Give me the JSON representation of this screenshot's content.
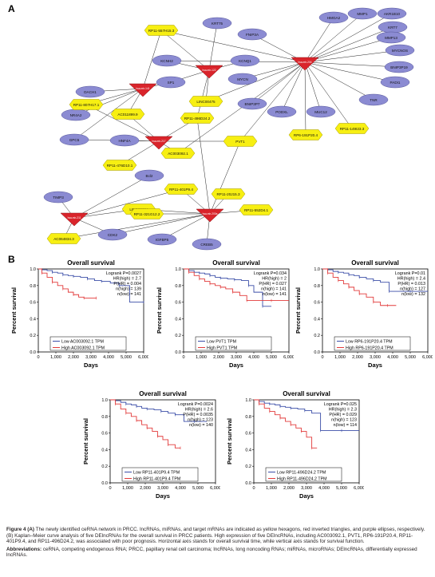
{
  "panel_a_label": "A",
  "panel_b_label": "B",
  "network": {
    "hexagons": [
      "RP11-557H15.3",
      "LINC00475",
      "RP11-807H17.1",
      "AC011899.9",
      "RP11-496D24.2",
      "PVT1",
      "AC003092.1",
      "RP11-476D10.1",
      "RP11-401P9.4",
      "LINC00284",
      "RP11-20J15.3",
      "RP11-552D4.1",
      "RP11-321G12.2",
      "AC064834.3",
      "RP6-191P20.4",
      "RP11-149I23.3"
    ],
    "mirnas": [
      "hsa-mir-204",
      "hsa-mir-122",
      "hsa-mir-141",
      "hsa-mir-217",
      "hsa-mir-211",
      "hsa-mir-200a"
    ],
    "ellipses": [
      "KRT75",
      "FNIP3A",
      "KCNH2",
      "KCNQ1",
      "SP1",
      "MYCN",
      "HMGA2",
      "MMP1",
      "AKR1B10",
      "KRT7",
      "MMP13",
      "MYCNOS",
      "BNIP3P19",
      "PADI1",
      "TNR",
      "MUC12",
      "PODXL",
      "BNIP3P7",
      "DACH1",
      "NR4A2",
      "GPC5",
      "HNF4A",
      "Bcl2",
      "TIMP3",
      "CDK2",
      "IGFBP5",
      "CREB5"
    ]
  },
  "chart_data": [
    {
      "type": "line",
      "title": "Overall survival",
      "xlabel": "Days",
      "ylabel": "Percent survival",
      "xlim": [
        0,
        6000
      ],
      "ylim": [
        0,
        1.0
      ],
      "xticks": [
        "0",
        "1,000",
        "2,000",
        "3,000",
        "4,000",
        "5,000",
        "6,000"
      ],
      "yticks": [
        "0.0",
        "0.2",
        "0.4",
        "0.6",
        "0.8",
        "1.0"
      ],
      "stats": [
        "Logrank P=0.0027",
        "HR(high) = 2.7",
        "P(HR) = 0.004",
        "n(high) = 139",
        "n(low) = 141"
      ],
      "series": [
        {
          "name": "Low AC003092.1 TPM",
          "color": "#3b4ea8",
          "x": [
            0,
            200,
            500,
            800,
            1100,
            1400,
            1700,
            2000,
            2400,
            2800,
            3200,
            3600,
            4100,
            4600,
            5200,
            6000
          ],
          "y": [
            1.0,
            0.99,
            0.98,
            0.96,
            0.95,
            0.93,
            0.92,
            0.91,
            0.9,
            0.88,
            0.86,
            0.85,
            0.83,
            0.8,
            0.6,
            0.6
          ]
        },
        {
          "name": "High AC003092.1 TPM",
          "color": "#e23a3a",
          "x": [
            0,
            200,
            500,
            800,
            1100,
            1400,
            1700,
            2000,
            2300,
            2600,
            3000,
            3300
          ],
          "y": [
            1.0,
            0.95,
            0.9,
            0.84,
            0.8,
            0.76,
            0.72,
            0.69,
            0.66,
            0.65,
            0.65,
            0.65
          ]
        }
      ]
    },
    {
      "type": "line",
      "title": "Overall survival",
      "xlabel": "Days",
      "ylabel": "Percent survival",
      "xlim": [
        0,
        6000
      ],
      "ylim": [
        0,
        1.0
      ],
      "xticks": [
        "0",
        "1,000",
        "2,000",
        "3,000",
        "4,000",
        "5,000",
        "6,000"
      ],
      "yticks": [
        "0.0",
        "0.2",
        "0.4",
        "0.6",
        "0.8",
        "1.0"
      ],
      "stats": [
        "Logrank P=0.034",
        "HR(high) = 2",
        "P(HR) = 0.027",
        "n(high) = 141",
        "n(low) = 141"
      ],
      "series": [
        {
          "name": "Low PVT1 TPM",
          "color": "#3b4ea8",
          "x": [
            0,
            300,
            600,
            900,
            1200,
            1500,
            1800,
            2100,
            2500,
            2900,
            3300,
            3700,
            4000,
            4500,
            5000
          ],
          "y": [
            1.0,
            0.98,
            0.96,
            0.95,
            0.94,
            0.92,
            0.9,
            0.89,
            0.88,
            0.87,
            0.86,
            0.8,
            0.72,
            0.55,
            0.55
          ]
        },
        {
          "name": "High PVT1 TPM",
          "color": "#e23a3a",
          "x": [
            0,
            300,
            600,
            900,
            1200,
            1500,
            1800,
            2100,
            2400,
            2800,
            3200,
            3600,
            4200,
            5000,
            6000
          ],
          "y": [
            1.0,
            0.96,
            0.92,
            0.88,
            0.85,
            0.82,
            0.8,
            0.78,
            0.76,
            0.72,
            0.68,
            0.62,
            0.62,
            0.62,
            0.62
          ]
        }
      ]
    },
    {
      "type": "line",
      "title": "Overall survival",
      "xlabel": "Days",
      "ylabel": "Percent survival",
      "xlim": [
        0,
        6000
      ],
      "ylim": [
        0,
        1.0
      ],
      "xticks": [
        "0",
        "1,000",
        "2,000",
        "3,000",
        "4,000",
        "5,000",
        "6,000"
      ],
      "yticks": [
        "0.0",
        "0.2",
        "0.4",
        "0.6",
        "0.8",
        "1.0"
      ],
      "stats": [
        "Logrank P=0.01",
        "HR(high) = 2.4",
        "P(HR) = 0.013",
        "n(high) = 127",
        "n(low) = 132"
      ],
      "series": [
        {
          "name": "Low RP6-191P20.4 TPM",
          "color": "#3b4ea8",
          "x": [
            0,
            300,
            600,
            900,
            1200,
            1500,
            1800,
            2100,
            2500,
            2900,
            3300,
            3800,
            4300,
            5000,
            6000
          ],
          "y": [
            1.0,
            0.99,
            0.97,
            0.96,
            0.95,
            0.93,
            0.92,
            0.9,
            0.88,
            0.86,
            0.84,
            0.73,
            0.73,
            0.73,
            0.73
          ]
        },
        {
          "name": "High RP6-191P20.4 TPM",
          "color": "#e23a3a",
          "x": [
            0,
            300,
            600,
            900,
            1200,
            1500,
            1800,
            2100,
            2500,
            2900,
            3300,
            3700,
            4200
          ],
          "y": [
            1.0,
            0.95,
            0.9,
            0.86,
            0.82,
            0.78,
            0.74,
            0.7,
            0.66,
            0.6,
            0.56,
            0.56,
            0.56
          ]
        }
      ]
    },
    {
      "type": "line",
      "title": "Overall survival",
      "xlabel": "Days",
      "ylabel": "Percent survival",
      "xlim": [
        0,
        6000
      ],
      "ylim": [
        0,
        1.0
      ],
      "xticks": [
        "0",
        "1,000",
        "2,000",
        "3,000",
        "4,000",
        "5,000",
        "6,000"
      ],
      "yticks": [
        "0.0",
        "0.2",
        "0.4",
        "0.6",
        "0.8",
        "1.0"
      ],
      "stats": [
        "Logrank P=0.0024",
        "HR(high) = 2.6",
        "P(HR) = 0.0035",
        "n(high) = 123",
        "n(low) = 140"
      ],
      "series": [
        {
          "name": "Low RP11-401P9.4 TPM",
          "color": "#3b4ea8",
          "x": [
            0,
            300,
            600,
            900,
            1200,
            1500,
            1800,
            2100,
            2500,
            2900,
            3300,
            3700,
            4200,
            4800,
            5500
          ],
          "y": [
            1.0,
            0.99,
            0.97,
            0.95,
            0.94,
            0.92,
            0.9,
            0.89,
            0.88,
            0.86,
            0.84,
            0.82,
            0.74,
            0.74,
            0.74
          ]
        },
        {
          "name": "High RP11-401P9.4 TPM",
          "color": "#e23a3a",
          "x": [
            0,
            300,
            600,
            900,
            1200,
            1500,
            1800,
            2100,
            2400,
            2700,
            3000,
            3300,
            3700,
            4000
          ],
          "y": [
            1.0,
            0.95,
            0.89,
            0.84,
            0.8,
            0.75,
            0.7,
            0.66,
            0.62,
            0.56,
            0.52,
            0.46,
            0.42,
            0.42
          ]
        }
      ]
    },
    {
      "type": "line",
      "title": "Overall survival",
      "xlabel": "Days",
      "ylabel": "Percent survival",
      "xlim": [
        0,
        6000
      ],
      "ylim": [
        0,
        1.0
      ],
      "xticks": [
        "0",
        "1,000",
        "2,000",
        "3,000",
        "4,000",
        "5,000",
        "6,000"
      ],
      "yticks": [
        "0.0",
        "0.2",
        "0.4",
        "0.6",
        "0.8",
        "1.0"
      ],
      "stats": [
        "Logrank P=0.025",
        "HR(high) = 2.3",
        "P(HR) = 0.029",
        "n(high) = 123",
        "n(low) = 114"
      ],
      "series": [
        {
          "name": "Low RP11-496D24.2 TPM",
          "color": "#3b4ea8",
          "x": [
            0,
            300,
            600,
            900,
            1200,
            1500,
            1800,
            2100,
            2500,
            2900,
            3300,
            3800,
            4300,
            5000,
            6000
          ],
          "y": [
            1.0,
            0.98,
            0.96,
            0.95,
            0.94,
            0.92,
            0.91,
            0.9,
            0.89,
            0.87,
            0.84,
            0.63,
            0.63,
            0.63,
            0.63
          ]
        },
        {
          "name": "High RP11-496D24.2 TPM",
          "color": "#e23a3a",
          "x": [
            0,
            300,
            600,
            900,
            1200,
            1500,
            1800,
            2100,
            2400,
            2700,
            3000,
            3300,
            3600
          ],
          "y": [
            1.0,
            0.95,
            0.9,
            0.86,
            0.82,
            0.78,
            0.74,
            0.7,
            0.66,
            0.62,
            0.55,
            0.42,
            0.42
          ]
        }
      ]
    }
  ],
  "caption": {
    "lead": "Figure 4 (A)",
    "text": " The newly identified ceRNA network in PRCC. lncRNAs, miRNAs, and target mRNAs are indicated as yellow hexagons, red inverted triangles, and purple ellipses, respectively. (B) Kaplan–Meier curve analysis of five DElncRNAs for the overall survival in PRCC patients. High expression of five DElncRNAs, including AC003092.1, PVT1, RP6-191P20.4, RP11-401P9.4, and RP11-496D24.2, was associated with poor prognosis. Horizontal axis stands for overall survival time, while vertical axis stands for survival function.",
    "abbr_lead": "Abbreviations:",
    "abbr_text": " ceRNA, competing endogenous RNA; PRCC, papillary renal cell carcinoma; lncRNAs, long noncoding RNAs; miRNAs, microRNAs; DElncRNAs, differentially expressed lncRNAs."
  }
}
